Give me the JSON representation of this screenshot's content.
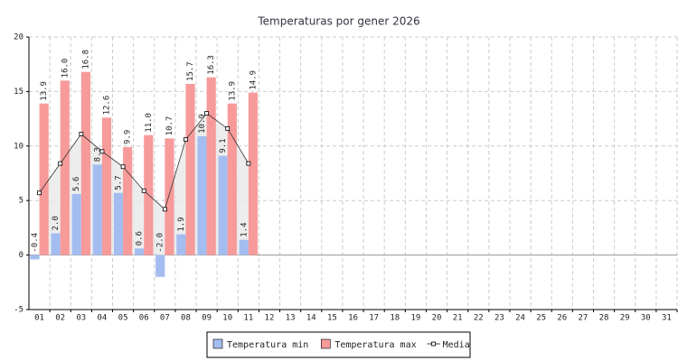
{
  "chart_data": {
    "type": "bar",
    "title": "Temperaturas por gener 2026",
    "categories": [
      "01",
      "02",
      "03",
      "04",
      "05",
      "06",
      "07",
      "08",
      "09",
      "10",
      "11",
      "12",
      "13",
      "14",
      "15",
      "16",
      "17",
      "18",
      "19",
      "20",
      "21",
      "22",
      "23",
      "24",
      "25",
      "26",
      "27",
      "28",
      "29",
      "30",
      "31"
    ],
    "series": [
      {
        "name": "Temperatura min",
        "color": "#a4bdf0",
        "type": "bar",
        "values": [
          -0.4,
          2.0,
          5.6,
          8.3,
          5.7,
          0.6,
          -2.0,
          1.9,
          10.9,
          9.1,
          1.4,
          null,
          null,
          null,
          null,
          null,
          null,
          null,
          null,
          null,
          null,
          null,
          null,
          null,
          null,
          null,
          null,
          null,
          null,
          null,
          null
        ],
        "value_labels": [
          "-0.4",
          "2.0",
          "5.6",
          "8.3",
          "5.7",
          "0.6",
          "-2.0",
          "1.9",
          "10.9",
          "9.1",
          "1.4",
          null,
          null,
          null,
          null,
          null,
          null,
          null,
          null,
          null,
          null,
          null,
          null,
          null,
          null,
          null,
          null,
          null,
          null,
          null,
          null
        ]
      },
      {
        "name": "Temperatura max",
        "color": "#f79a9a",
        "type": "bar",
        "values": [
          13.9,
          16.0,
          16.8,
          12.6,
          9.9,
          11.0,
          10.7,
          15.7,
          16.3,
          13.9,
          14.9,
          null,
          null,
          null,
          null,
          null,
          null,
          null,
          null,
          null,
          null,
          null,
          null,
          null,
          null,
          null,
          null,
          null,
          null,
          null,
          null
        ],
        "value_labels": [
          "13.9",
          "16.0",
          "16.8",
          "12.6",
          "9.9",
          "11.0",
          "10.7",
          "15.7",
          "16.3",
          "13.9",
          "14.9",
          null,
          null,
          null,
          null,
          null,
          null,
          null,
          null,
          null,
          null,
          null,
          null,
          null,
          null,
          null,
          null,
          null,
          null,
          null,
          null
        ]
      },
      {
        "name": "Media",
        "color": "#333333",
        "type": "line",
        "values": [
          5.7,
          8.4,
          11.1,
          9.5,
          8.1,
          5.9,
          4.2,
          10.6,
          13.0,
          11.6,
          8.4,
          null,
          null,
          null,
          null,
          null,
          null,
          null,
          null,
          null,
          null,
          null,
          null,
          null,
          null,
          null,
          null,
          null,
          null,
          null,
          null
        ]
      }
    ],
    "ylim": [
      -5,
      20
    ],
    "yticks": [
      -5,
      0,
      5,
      10,
      15,
      20
    ],
    "grid": true,
    "legend": "bottom"
  }
}
